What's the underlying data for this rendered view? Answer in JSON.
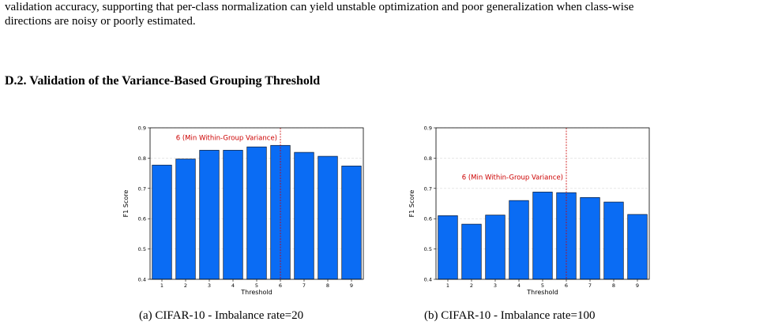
{
  "paragraph": {
    "line1": "validation accuracy, supporting that per-class normalization can yield unstable optimization and poor generalization when class-wise",
    "line2": "directions are noisy or poorly estimated."
  },
  "section_heading": "D.2. Validation of the Variance-Based Grouping Threshold",
  "colors": {
    "bar": "#0a6cf4",
    "marker": "#cc0000"
  },
  "chart_data": [
    {
      "type": "bar",
      "title": "",
      "caption": "(a) CIFAR-10 - Imbalance rate=20",
      "xlabel": "Threshold",
      "ylabel": "F1 Score",
      "categories": [
        "1",
        "2",
        "3",
        "4",
        "5",
        "6",
        "7",
        "8",
        "9"
      ],
      "values": [
        0.777,
        0.797,
        0.826,
        0.826,
        0.837,
        0.842,
        0.819,
        0.806,
        0.774
      ],
      "ylim": [
        0.4,
        0.9
      ],
      "yticks": [
        "0.4",
        "0.5",
        "0.6",
        "0.7",
        "0.8",
        "0.9"
      ],
      "grid": true,
      "marker": {
        "x": "6",
        "label": "6 (Min Within-Group Variance)"
      }
    },
    {
      "type": "bar",
      "title": "",
      "caption": "(b) CIFAR-10 - Imbalance rate=100",
      "xlabel": "Threshold",
      "ylabel": "F1 Score",
      "categories": [
        "1",
        "2",
        "3",
        "4",
        "5",
        "6",
        "7",
        "8",
        "9"
      ],
      "values": [
        0.61,
        0.582,
        0.612,
        0.66,
        0.688,
        0.686,
        0.67,
        0.655,
        0.614
      ],
      "ylim": [
        0.4,
        0.9
      ],
      "yticks": [
        "0.4",
        "0.5",
        "0.6",
        "0.7",
        "0.8",
        "0.9"
      ],
      "grid": true,
      "marker": {
        "x": "6",
        "label": "6 (Min Within-Group Variance)"
      }
    }
  ]
}
